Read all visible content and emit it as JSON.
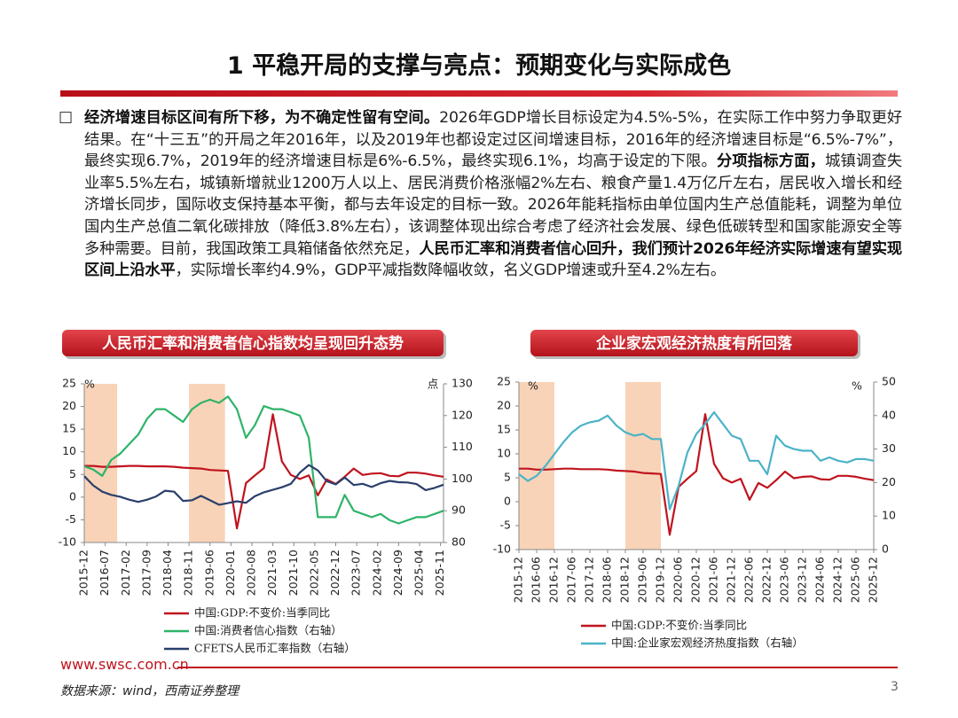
{
  "header": {
    "title": "1 平稳开局的支撑与亮点：预期变化与实际成色"
  },
  "body": {
    "runs": [
      {
        "text": "经济增速目标区间有所下移，为不确定性留有空间。",
        "bold": true
      },
      {
        "text": "2026年GDP增长目标设定为4.5%-5%，在实际工作中努力争取更好结果。在“十三五”的开局之年2016年，以及2019年也都设定过区间增速目标，2016年的经济增速目标是“6.5%-7%”，最终实现6.7%，2019年的经济增速目标是6%-6.5%，最终实现6.1%，均高于设定的下限。",
        "bold": false
      },
      {
        "text": "分项指标方面，",
        "bold": true
      },
      {
        "text": "城镇调查失业率5.5%左右，城镇新增就业1200万人以上、居民消费价格涨幅2%左右、粮食产量1.4万亿斤左右，居民收入增长和经济增长同步，国际收支保持基本平衡，都与去年设定的目标一致。2026年能耗指标由单位国内生产总值能耗，调整为单位国内生产总值二氧化碳排放（降低3.8%左右），该调整体现出综合考虑了经济社会发展、绿色低碳转型和国家能源安全等多种需要。目前，我国政策工具箱储备依然充足，",
        "bold": false
      },
      {
        "text": "人民币汇率和消费者信心回升，我们预计2026年经济实际增速有望实现区间上沿水平",
        "bold": true
      },
      {
        "text": "，实际增长率约4.9%，GDP平减指数降幅收敛，名义GDP增速或升至4.2%左右。",
        "bold": false
      }
    ]
  },
  "chart_data": [
    {
      "type": "line",
      "title": "人民币汇率和消费者信心指数均呈现回升态势",
      "y_unit": "%",
      "y2_unit": "点",
      "x": [
        "2015-12",
        "2016-03",
        "2016-06",
        "2016-09",
        "2016-12",
        "2017-03",
        "2017-06",
        "2017-09",
        "2017-12",
        "2018-03",
        "2018-06",
        "2018-09",
        "2018-12",
        "2019-03",
        "2019-06",
        "2019-09",
        "2019-12",
        "2020-03",
        "2020-06",
        "2020-09",
        "2020-12",
        "2021-03",
        "2021-06",
        "2021-09",
        "2021-12",
        "2022-03",
        "2022-06",
        "2022-09",
        "2022-12",
        "2023-03",
        "2023-06",
        "2023-09",
        "2023-12",
        "2024-03",
        "2024-06",
        "2024-09",
        "2024-12",
        "2025-03",
        "2025-06",
        "2025-09",
        "2025-12"
      ],
      "xticks": [
        "2015-12",
        "2016-07",
        "2017-02",
        "2017-09",
        "2018-04",
        "2018-11",
        "2019-06",
        "2020-01",
        "2020-08",
        "2021-03",
        "2021-10",
        "2022-05",
        "2022-12",
        "2023-07",
        "2024-02",
        "2024-09",
        "2025-04",
        "2025-11"
      ],
      "ylim": [
        -10,
        25
      ],
      "yticks": [
        -10,
        -5,
        0,
        5,
        10,
        15,
        20,
        25
      ],
      "y2lim": [
        80,
        130
      ],
      "y2ticks": [
        80,
        90,
        100,
        110,
        120,
        130
      ],
      "shaded_periods": [
        {
          "start": "2015-12",
          "end": "2016-11"
        },
        {
          "start": "2018-11",
          "end": "2019-11"
        }
      ],
      "shade_color": "#f8d3b8",
      "series": [
        {
          "name": "中国:GDP:不变价:当季同比",
          "color": "#c0141e",
          "values": [
            6.9,
            6.9,
            6.7,
            6.7,
            6.8,
            6.9,
            6.9,
            6.8,
            6.8,
            6.8,
            6.7,
            6.5,
            6.4,
            6.3,
            6.0,
            5.9,
            5.8,
            -6.9,
            3.1,
            4.8,
            6.4,
            18.3,
            7.9,
            4.9,
            4.0,
            4.8,
            0.4,
            3.9,
            2.9,
            4.5,
            6.3,
            4.9,
            5.2,
            5.3,
            4.7,
            4.6,
            5.4,
            5.4,
            5.2,
            4.8,
            4.5
          ]
        },
        {
          "name": "中国:消费者信心指数（右轴）",
          "color": "#2fb36a",
          "axis": "y2",
          "values": [
            104,
            103,
            101,
            106,
            108,
            111,
            114,
            119,
            122,
            122,
            120,
            118,
            122,
            124,
            125,
            124,
            126,
            122,
            113,
            117,
            123,
            122,
            122,
            121,
            120,
            113,
            88,
            88,
            88,
            95,
            90,
            89,
            88,
            89,
            87,
            86,
            87,
            88,
            88,
            89,
            90
          ]
        },
        {
          "name": "CFETS人民币汇率指数（右轴）",
          "color": "#2b3f6b",
          "axis": "y2",
          "values": [
            100.9,
            98,
            96,
            95,
            94.4,
            93.5,
            92.8,
            93.5,
            94.5,
            96.3,
            96,
            93.1,
            93.3,
            94.7,
            93.3,
            91.9,
            92.4,
            93,
            92.5,
            94.6,
            95.8,
            96.6,
            97.4,
            98.5,
            102,
            104.4,
            102.7,
            99.3,
            98.3,
            100.5,
            98.1,
            98.5,
            97.5,
            98.7,
            99.4,
            99,
            98.9,
            98.4,
            96.5,
            97.2,
            98.2
          ]
        }
      ]
    },
    {
      "type": "line",
      "title": "企业家宏观经济热度有所回落",
      "y_unit": "%",
      "y2_unit": "%",
      "x": [
        "2015-12",
        "2016-03",
        "2016-06",
        "2016-09",
        "2016-12",
        "2017-03",
        "2017-06",
        "2017-09",
        "2017-12",
        "2018-03",
        "2018-06",
        "2018-09",
        "2018-12",
        "2019-03",
        "2019-06",
        "2019-09",
        "2019-12",
        "2020-03",
        "2020-06",
        "2020-09",
        "2020-12",
        "2021-03",
        "2021-06",
        "2021-09",
        "2021-12",
        "2022-03",
        "2022-06",
        "2022-09",
        "2022-12",
        "2023-03",
        "2023-06",
        "2023-09",
        "2023-12",
        "2024-03",
        "2024-06",
        "2024-09",
        "2024-12",
        "2025-03",
        "2025-06",
        "2025-09",
        "2025-12"
      ],
      "xticks": [
        "2015-12",
        "2016-06",
        "2016-12",
        "2017-06",
        "2017-12",
        "2018-06",
        "2018-12",
        "2019-06",
        "2019-12",
        "2020-06",
        "2020-12",
        "2021-06",
        "2021-12",
        "2022-06",
        "2022-12",
        "2023-06",
        "2023-12",
        "2024-06",
        "2024-12",
        "2025-06",
        "2025-12"
      ],
      "ylim": [
        -10,
        25
      ],
      "yticks": [
        -10,
        -5,
        0,
        5,
        10,
        15,
        20,
        25
      ],
      "y2lim": [
        0,
        50
      ],
      "y2ticks": [
        0,
        10,
        20,
        30,
        40,
        50
      ],
      "shaded_periods": [
        {
          "start": "2015-12",
          "end": "2016-12"
        },
        {
          "start": "2018-12",
          "end": "2019-12"
        }
      ],
      "shade_color": "#f8d3b8",
      "series": [
        {
          "name": "中国:GDP:不变价:当季同比",
          "color": "#c0141e",
          "values": [
            6.9,
            6.9,
            6.7,
            6.7,
            6.8,
            6.9,
            6.9,
            6.8,
            6.8,
            6.8,
            6.7,
            6.5,
            6.4,
            6.3,
            6.0,
            5.9,
            5.8,
            -6.9,
            3.1,
            4.8,
            6.4,
            18.3,
            7.9,
            4.9,
            4.0,
            4.8,
            0.4,
            3.9,
            2.9,
            4.5,
            6.3,
            4.9,
            5.2,
            5.3,
            4.7,
            4.6,
            5.4,
            5.4,
            5.2,
            4.8,
            4.5
          ]
        },
        {
          "name": "中国:企业家宏观经济热度指数（右轴）",
          "color": "#4bb3c8",
          "axis": "y2",
          "values": [
            22.5,
            20.5,
            22,
            25,
            28.5,
            32,
            35,
            37,
            38,
            38.5,
            40,
            37,
            35,
            34,
            34.5,
            33,
            33,
            12,
            19,
            29,
            34.5,
            37.5,
            41,
            37.5,
            34,
            33,
            26.5,
            26.5,
            22.5,
            34,
            31,
            30,
            29.5,
            29.5,
            26.5,
            27.5,
            26.5,
            26,
            27,
            27,
            26.5
          ]
        }
      ]
    }
  ],
  "footer": {
    "site": "www.swsc.com.cn",
    "source": "数据来源：wind，西南证券整理",
    "page": 3
  }
}
